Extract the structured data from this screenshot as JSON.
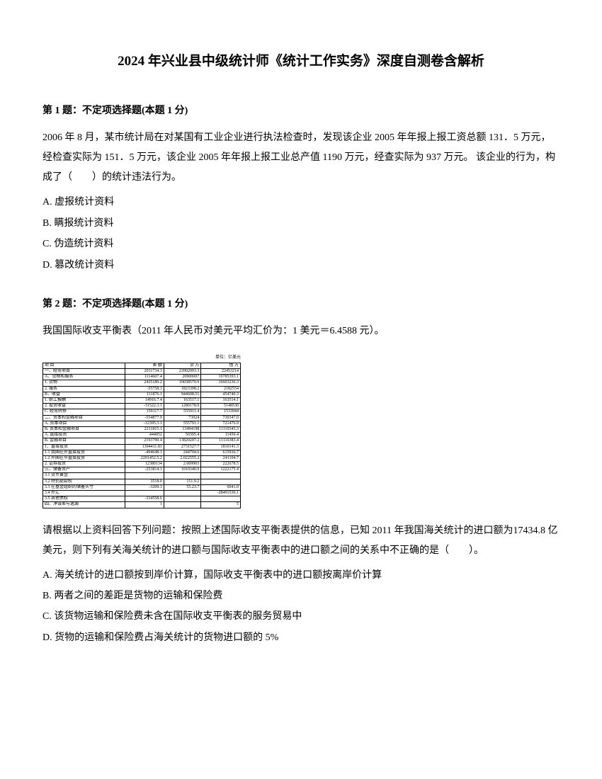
{
  "title": "2024 年兴业县中级统计师《统计工作实务》深度自测卷含解析",
  "q1": {
    "header": "第 1 题：不定项选择题(本题 1 分)",
    "body": "2006 年 8 月，某市统计局在对某国有工业企业进行执法检查时，发现该企业 2005 年年报上报工资总额 131．5 万元，经检查实际为 151．5 万元，该企业 2005 年年报上报工业总产值 1190 万元，经查实际为 937 万元。 该企业的行为，构成了（　　）的统计违法行为。",
    "optA": "A. 虚报统计资料",
    "optB": "B. 瞒报统计资料",
    "optC": "C. 伪造统计资料",
    "optD": "D. 篡改统计资料"
  },
  "q2": {
    "header": "第 2 题：不定项选择题(本题 1 分)",
    "intro": "我国国际收支平衡表（2011 年人民币对美元平均汇价为：1 美元＝6.4588 元）。",
    "body": "请根据以上资料回答下列问题：按照上述国际收支平衡表提供的信息，已知 2011 年我国海关统计的进口额为17434.8 亿美元，则下列有关海关统计的进口额与国际收支平衡表中的进口额之间的关系中不正确的是（　　）。",
    "optA": "A. 海关统计的进口额按到岸价计算，国际收支平衡表中的进口额按离岸价计算",
    "optB": "B. 两者之间的差距是货物的运输和保险费",
    "optC": "C. 该货物运输和保险费未含在国际收支平衡表的服务贸易中",
    "optD": "D. 货物的运输和保险费占海关统计的货物进口额的 5%"
  },
  "table": {
    "unit": "单位：亿美元",
    "headers": [
      "项 目",
      "差 额",
      "贷 方",
      "借 方"
    ],
    "rows": [
      [
        "一、经常项目",
        "2011734.3",
        "23902093.3",
        "22453214"
      ],
      [
        "A．货物和服务",
        "1114607.4",
        "20900007",
        "19785393.1"
      ],
      [
        "1. 货物",
        "2435189.2",
        "19038570.9",
        "16603236.3"
      ],
      [
        "2. 服务",
        "-55758.3",
        "1823398.2",
        "2182554"
      ],
      [
        "B．收益",
        "111876.1",
        "944608.51",
        "454740.3"
      ],
      [
        "1. 职工报酬",
        "14916.7.4",
        "163517.1",
        "163514.1"
      ],
      [
        "2. 投资收益",
        "-31522.3.1",
        "1280178.9",
        "5148530"
      ],
      [
        "C. 经常转移",
        "159117.7",
        "555911.4",
        "1533944"
      ],
      [
        "二、资本和金融项目",
        "-554877.9",
        "73024",
        "730347.0"
      ],
      [
        "A. 资本项目",
        "-12395.3.1",
        "555791.1",
        "721476.9"
      ],
      [
        "B. 资本和金融项目",
        "2211815.1",
        "13494198",
        "11110343.3"
      ],
      [
        "A. 直接投资",
        "444052",
        "50395.4",
        "11450.4"
      ],
      [
        "B. 金融项目",
        "2193790.4",
        "13820207.2",
        "11110383.4"
      ],
      [
        "1．直接投资",
        "1394411.81",
        "2731527.7",
        "1810141.3"
      ],
      [
        "1.1 我国在外直接投资",
        "-494648.1",
        "244704.6",
        "615936.7"
      ],
      [
        "1.2 外国在华直接投资",
        "2201452.5.2",
        "2.022555.2",
        "241104.7"
      ],
      [
        "2. 证券投资",
        "12380134",
        "2.009903",
        "222678.5"
      ],
      [
        "三、储备资产",
        "-253814.1",
        "1010340.9",
        "1222175.4"
      ],
      [
        "3.1 货币黄金",
        "",
        "",
        ""
      ],
      [
        "3.2 特别提款权",
        "3518.0",
        "151.9.2",
        ""
      ],
      [
        "3.3 在基金组织的储备头寸",
        "-3209.3",
        "55.23.7",
        "6041.0"
      ],
      [
        "3.4 外汇",
        "",
        "",
        "-28491536.1"
      ],
      [
        "3.5 其他债权",
        "-334558.6",
        "",
        ""
      ],
      [
        "四、净误差与遗漏",
        "1",
        "",
        "5"
      ]
    ]
  },
  "colors": {
    "text": "#000000",
    "background": "#ffffff",
    "border": "#000000"
  }
}
